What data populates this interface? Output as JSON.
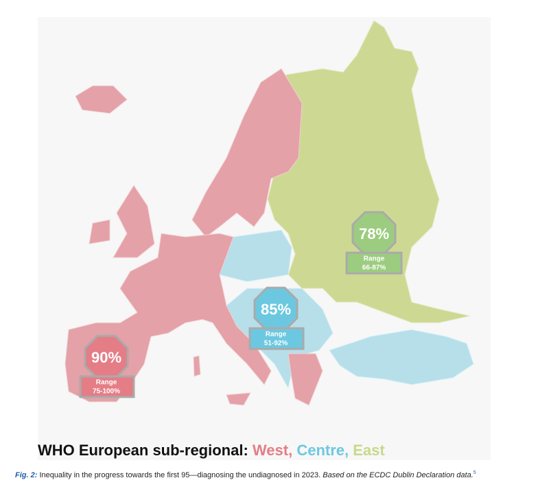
{
  "map": {
    "regions": [
      {
        "name": "West",
        "value": "90%",
        "range_label": "Range",
        "range": "75-100%"
      },
      {
        "name": "Centre",
        "value": "85%",
        "range_label": "Range",
        "range": "51-92%"
      },
      {
        "name": "East",
        "value": "78%",
        "range_label": "Range",
        "range": "66-87%"
      }
    ],
    "title": {
      "prefix": "WHO European sub-regional:",
      "west": "West,",
      "centre": "Centre,",
      "east": "East"
    }
  },
  "caption": {
    "label": "Fig. 2:",
    "text": "Inequality in the progress towards the first 95—diagnosing the undiagnosed in 2023.",
    "source": "Based on the ECDC Dublin Declaration data.",
    "ref": "5"
  }
}
